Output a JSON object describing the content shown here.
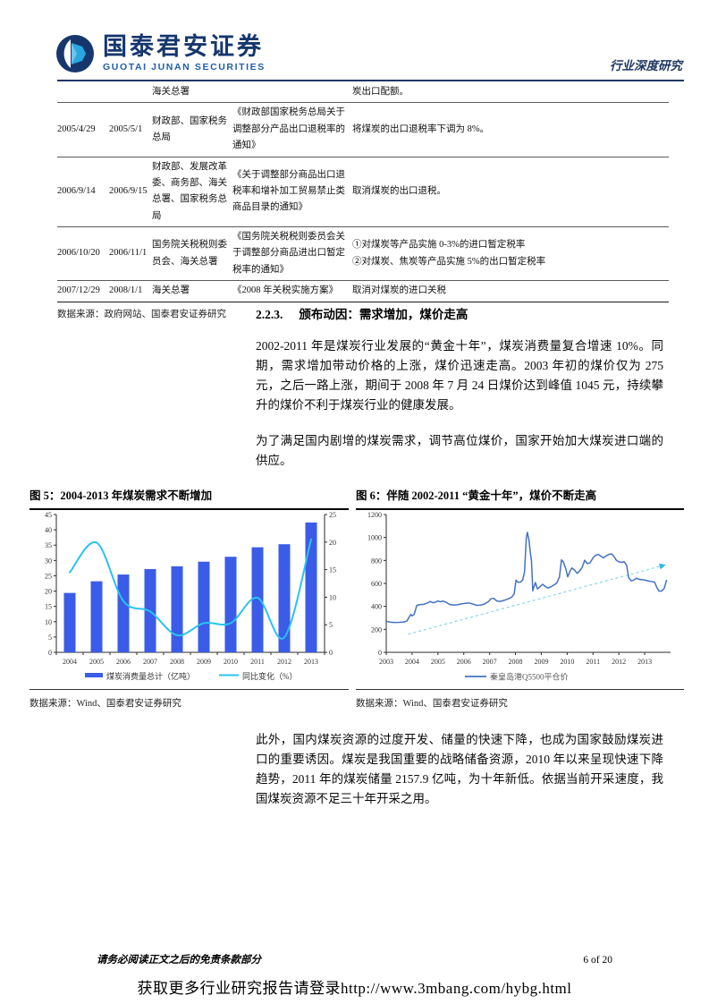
{
  "header": {
    "brand_cn": "国泰君安证券",
    "brand_en": "GUOTAI JUNAN SECURITIES",
    "doc_type": "行业深度研究"
  },
  "policy_table": {
    "rows": [
      {
        "date1": "",
        "date2": "",
        "agency": "海关总署",
        "doc": "",
        "content": "炭出口配额。"
      },
      {
        "date1": "2005/4/29",
        "date2": "2005/5/1",
        "agency": "财政部、国家税务总局",
        "doc": "《财政部国家税务总局关于调整部分产品出口退税率的通知》",
        "content": "将煤炭的出口退税率下调为 8%。"
      },
      {
        "date1": "2006/9/14",
        "date2": "2006/9/15",
        "agency": "财政部、发展改革委、商务部、海关总署、国家税务总局",
        "doc": "《关于调整部分商品出口退税率和增补加工贸易禁止类商品目录的通知》",
        "content": "取消煤炭的出口退税。"
      },
      {
        "date1": "2006/10/20",
        "date2": "2006/11/1",
        "agency": "国务院关税税则委员会、海关总署",
        "doc": "《国务院关税税则委员会关于调整部分商品进出口暂定税率的通知》",
        "content": "①对煤炭等产品实施 0-3%的进口暂定税率\n②对煤炭、焦炭等产品实施 5%的出口暂定税率"
      },
      {
        "date1": "2007/12/29",
        "date2": "2008/1/1",
        "agency": "海关总署",
        "doc": "《2008 年关税实施方案》",
        "content": "取消对煤炭的进口关税"
      }
    ],
    "source": "数据来源：政府网站、国泰君安证券研究"
  },
  "section": {
    "heading_num": "2.2.3.",
    "heading_text": "颁布动因：需求增加，煤价走高",
    "para1": "2002-2011 年是煤炭行业发展的“黄金十年”，煤炭消费量复合增速 10%。同期，需求增加带动价格的上涨，煤价迅速走高。2003 年初的煤价仅为 275 元，之后一路上涨，期间于 2008 年 7 月 24 日煤价达到峰值 1045 元，持续攀升的煤价不利于煤炭行业的健康发展。",
    "para2": "为了满足国内剧增的煤炭需求，调节高位煤价，国家开始加大煤炭进口端的供应。",
    "para3": "此外，国内煤炭资源的过度开发、储量的快速下降，也成为国家鼓励煤炭进口的重要诱因。煤炭是我国重要的战略储备资源，2010 年以来呈现快速下降趋势，2011 年的煤炭储量 2157.9 亿吨，为十年新低。依据当前开采速度，我国煤炭资源不足三十年开采之用。"
  },
  "figures": {
    "fig5_title": "图 5：2004-2013 年煤炭需求不断增加",
    "fig6_title": "图 6：伴随 2002-2011 “黄金十年”，煤价不断走高",
    "fig5_source": "数据来源：Wind、国泰君安证券研究",
    "fig6_source": "数据来源：Wind、国泰君安证券研究"
  },
  "chart_data": [
    {
      "type": "bar",
      "title": "图 5：2004-2013 年煤炭需求不断增加",
      "categories": [
        "2004",
        "2005",
        "2006",
        "2007",
        "2008",
        "2009",
        "2010",
        "2011",
        "2012",
        "2013"
      ],
      "series": [
        {
          "name": "煤炭消费量总计（亿吨）",
          "type": "bar",
          "axis": "left",
          "color": "#3a5ce8",
          "values": [
            19.4,
            23.2,
            25.4,
            27.2,
            28.1,
            29.6,
            31.2,
            34.3,
            35.3,
            42.4
          ]
        },
        {
          "name": "同比变化（%）",
          "type": "line",
          "axis": "right",
          "color": "#29c3f1",
          "values": [
            14.5,
            19.9,
            9.3,
            7.4,
            3.1,
            5.3,
            5.3,
            9.9,
            2.7,
            20.5
          ]
        }
      ],
      "left_ylim": [
        0,
        45
      ],
      "left_step": 5,
      "right_ylim": [
        0,
        25
      ],
      "right_step": 5,
      "legend_position": "bottom",
      "grid": false
    },
    {
      "type": "line",
      "title": "图 6：伴随 2002-2011 “黄金十年”，煤价不断走高",
      "series": [
        {
          "name": "秦皇岛港Q5500平仓价",
          "color": "#4472c4",
          "points": [
            [
              2003.0,
              270
            ],
            [
              2003.15,
              263
            ],
            [
              2003.3,
              260
            ],
            [
              2003.5,
              261
            ],
            [
              2003.7,
              265
            ],
            [
              2003.8,
              272
            ],
            [
              2003.88,
              305
            ],
            [
              2003.95,
              330
            ],
            [
              2004.0,
              318
            ],
            [
              2004.08,
              330
            ],
            [
              2004.18,
              408
            ],
            [
              2004.3,
              415
            ],
            [
              2004.45,
              418
            ],
            [
              2004.6,
              430
            ],
            [
              2004.7,
              443
            ],
            [
              2004.8,
              432
            ],
            [
              2004.9,
              437
            ],
            [
              2005.0,
              447
            ],
            [
              2005.1,
              440
            ],
            [
              2005.2,
              446
            ],
            [
              2005.3,
              438
            ],
            [
              2005.45,
              417
            ],
            [
              2005.6,
              412
            ],
            [
              2005.75,
              414
            ],
            [
              2005.9,
              422
            ],
            [
              2006.05,
              427
            ],
            [
              2006.2,
              430
            ],
            [
              2006.35,
              421
            ],
            [
              2006.5,
              409
            ],
            [
              2006.65,
              411
            ],
            [
              2006.8,
              421
            ],
            [
              2006.95,
              441
            ],
            [
              2007.05,
              467
            ],
            [
              2007.15,
              471
            ],
            [
              2007.28,
              447
            ],
            [
              2007.4,
              443
            ],
            [
              2007.55,
              452
            ],
            [
              2007.7,
              464
            ],
            [
              2007.85,
              480
            ],
            [
              2007.95,
              510
            ],
            [
              2008.02,
              628
            ],
            [
              2008.1,
              610
            ],
            [
              2008.2,
              612
            ],
            [
              2008.28,
              632
            ],
            [
              2008.35,
              700
            ],
            [
              2008.42,
              1000
            ],
            [
              2008.46,
              1045
            ],
            [
              2008.52,
              980
            ],
            [
              2008.58,
              860
            ],
            [
              2008.62,
              795
            ],
            [
              2008.67,
              535
            ],
            [
              2008.72,
              575
            ],
            [
              2008.77,
              608
            ],
            [
              2008.85,
              552
            ],
            [
              2008.95,
              572
            ],
            [
              2009.05,
              592
            ],
            [
              2009.15,
              575
            ],
            [
              2009.25,
              560
            ],
            [
              2009.38,
              572
            ],
            [
              2009.5,
              588
            ],
            [
              2009.6,
              605
            ],
            [
              2009.7,
              655
            ],
            [
              2009.78,
              805
            ],
            [
              2009.85,
              788
            ],
            [
              2009.95,
              725
            ],
            [
              2010.02,
              658
            ],
            [
              2010.1,
              700
            ],
            [
              2010.18,
              735
            ],
            [
              2010.28,
              718
            ],
            [
              2010.38,
              688
            ],
            [
              2010.48,
              708
            ],
            [
              2010.58,
              740
            ],
            [
              2010.68,
              802
            ],
            [
              2010.78,
              772
            ],
            [
              2010.88,
              778
            ],
            [
              2011.0,
              822
            ],
            [
              2011.1,
              845
            ],
            [
              2011.2,
              853
            ],
            [
              2011.3,
              838
            ],
            [
              2011.4,
              823
            ],
            [
              2011.52,
              842
            ],
            [
              2011.62,
              853
            ],
            [
              2011.72,
              857
            ],
            [
              2011.8,
              838
            ],
            [
              2011.9,
              803
            ],
            [
              2012.0,
              788
            ],
            [
              2012.1,
              783
            ],
            [
              2012.2,
              790
            ],
            [
              2012.3,
              760
            ],
            [
              2012.38,
              650
            ],
            [
              2012.48,
              622
            ],
            [
              2012.58,
              630
            ],
            [
              2012.68,
              645
            ],
            [
              2012.78,
              636
            ],
            [
              2012.9,
              632
            ],
            [
              2013.0,
              630
            ],
            [
              2013.12,
              622
            ],
            [
              2013.25,
              617
            ],
            [
              2013.38,
              612
            ],
            [
              2013.48,
              560
            ],
            [
              2013.55,
              535
            ],
            [
              2013.65,
              533
            ],
            [
              2013.75,
              555
            ],
            [
              2013.85,
              630
            ]
          ]
        }
      ],
      "trendline": {
        "from": [
          2003.85,
          158
        ],
        "to": [
          2013.58,
          748
        ],
        "style": "dashed",
        "color": "#8ed7f2",
        "arrow": true
      },
      "xlim": [
        2003,
        2014
      ],
      "xticks": [
        "2003",
        "2004",
        "2005",
        "2006",
        "2007",
        "2008",
        "2009",
        "2010",
        "2011",
        "2012",
        "2013"
      ],
      "ylim": [
        0,
        1200
      ],
      "ystep": 200,
      "legend_position": "bottom",
      "grid": false
    }
  ],
  "footer": {
    "disclaimer": "请务必阅读正文之后的免责条款部分",
    "page": "6 of 20",
    "promo": "获取更多行业研究报告请登录http://www.3mbang.com/hybg.html"
  }
}
